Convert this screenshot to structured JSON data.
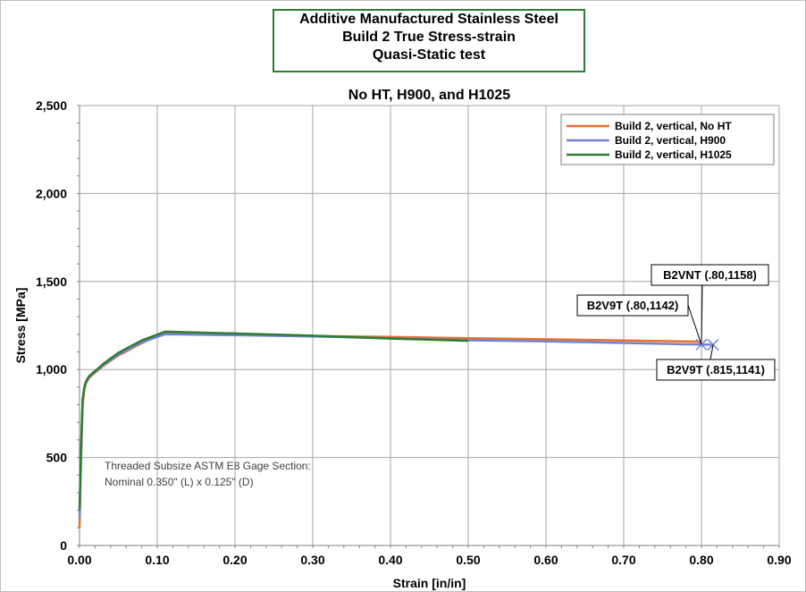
{
  "chart_data": {
    "type": "line",
    "title_lines": [
      "Additive Manufactured Stainless Steel",
      "Build 2 True Stress-strain",
      "Quasi-Static test"
    ],
    "subtitle": "No HT, H900, and H1025",
    "xlabel": "Strain [in/in]",
    "ylabel": "Stress [MPa]",
    "xlim": [
      0,
      0.9
    ],
    "ylim": [
      0,
      2500
    ],
    "xticks": [
      0,
      0.1,
      0.2,
      0.3,
      0.4,
      0.5,
      0.6,
      0.7,
      0.8,
      0.9
    ],
    "xtick_labels": [
      "0.00",
      "0.10",
      "0.20",
      "0.30",
      "0.40",
      "0.50",
      "0.60",
      "0.70",
      "0.80",
      "0.90"
    ],
    "yticks": [
      0,
      500,
      1000,
      1500,
      2000,
      2500
    ],
    "ytick_labels": [
      "0",
      "500",
      "1,000",
      "1,500",
      "2,000",
      "2,500"
    ],
    "grid": true,
    "legend_position": "top-right",
    "series": [
      {
        "name": "Build 2, vertical, No HT",
        "color": "#e8702a",
        "x": [
          0,
          0.002,
          0.004,
          0.006,
          0.008,
          0.012,
          0.018,
          0.025,
          0.03,
          0.05,
          0.08,
          0.11,
          0.2,
          0.3,
          0.4,
          0.5,
          0.6,
          0.7,
          0.8
        ],
        "y": [
          100,
          500,
          800,
          880,
          920,
          950,
          975,
          1000,
          1020,
          1080,
          1150,
          1210,
          1200,
          1190,
          1185,
          1178,
          1172,
          1165,
          1158
        ]
      },
      {
        "name": "Build 2, vertical, H900",
        "color": "#6e84d6",
        "x": [
          0,
          0.002,
          0.004,
          0.006,
          0.008,
          0.012,
          0.018,
          0.025,
          0.03,
          0.05,
          0.08,
          0.11,
          0.2,
          0.3,
          0.4,
          0.5,
          0.6,
          0.7,
          0.8,
          0.815
        ],
        "y": [
          150,
          520,
          820,
          890,
          925,
          955,
          980,
          1005,
          1025,
          1085,
          1155,
          1200,
          1195,
          1188,
          1178,
          1166,
          1160,
          1151,
          1142,
          1141
        ]
      },
      {
        "name": "Build 2, vertical, H1025",
        "color": "#2e7d32",
        "x": [
          0,
          0.002,
          0.004,
          0.006,
          0.008,
          0.012,
          0.018,
          0.025,
          0.03,
          0.05,
          0.08,
          0.11,
          0.2,
          0.3,
          0.4,
          0.5
        ],
        "y": [
          200,
          550,
          830,
          895,
          930,
          960,
          985,
          1010,
          1030,
          1095,
          1165,
          1215,
          1205,
          1192,
          1176,
          1163
        ]
      }
    ],
    "markers": [
      {
        "x": 0.8,
        "y": 1142,
        "symbol": "x",
        "color": "#6e84d6"
      },
      {
        "x": 0.815,
        "y": 1141,
        "symbol": "x",
        "color": "#6e84d6"
      }
    ],
    "callouts": [
      {
        "text": "B2VNT (.80,1158)",
        "x": 0.8,
        "y": 1158
      },
      {
        "text": "B2V9T (.80,1142)",
        "x": 0.8,
        "y": 1142
      },
      {
        "text": "B2V9T (.815,1141)",
        "x": 0.815,
        "y": 1141
      }
    ],
    "annotation_lines": [
      "Threaded Subsize ASTM E8 Gage Section:",
      "Nominal 0.350\" (L) x 0.125\" (D)"
    ]
  }
}
